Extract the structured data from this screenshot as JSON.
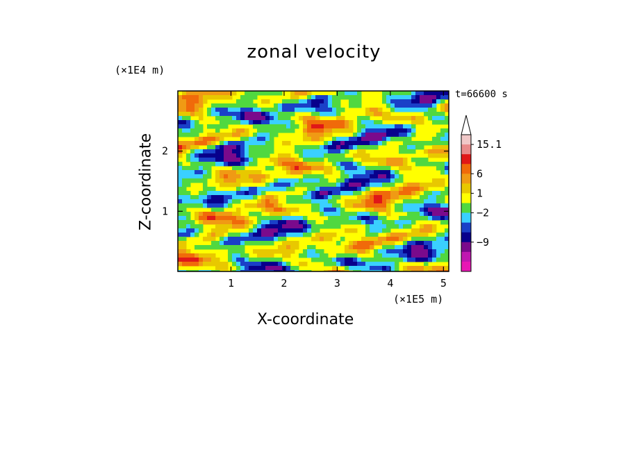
{
  "chart_data": {
    "type": "heatmap",
    "title": "zonal velocity",
    "xlabel": "X-coordinate",
    "ylabel": "Z-coordinate",
    "x_unit": "(×1E5 m)",
    "y_unit": "(×1E4 m)",
    "time_label": "t=66600 s",
    "xlim": [
      0,
      5.1
    ],
    "ylim": [
      0,
      3.0
    ],
    "x_ticks": [
      "1",
      "2",
      "3",
      "4",
      "5"
    ],
    "y_ticks": [
      "1",
      "2"
    ],
    "colorbar": {
      "labels": [
        "15.1",
        "6",
        "1",
        "−2",
        "−9"
      ],
      "colors": [
        "#f0c8c8",
        "#e88a8a",
        "#e01818",
        "#f06a0a",
        "#f09a14",
        "#e8c800",
        "#ffff00",
        "#50d840",
        "#3ad0ff",
        "#1a40c8",
        "#08008c",
        "#7a0a8c",
        "#c018b0",
        "#e818b4"
      ],
      "extend_max": true
    },
    "grid": false
  }
}
